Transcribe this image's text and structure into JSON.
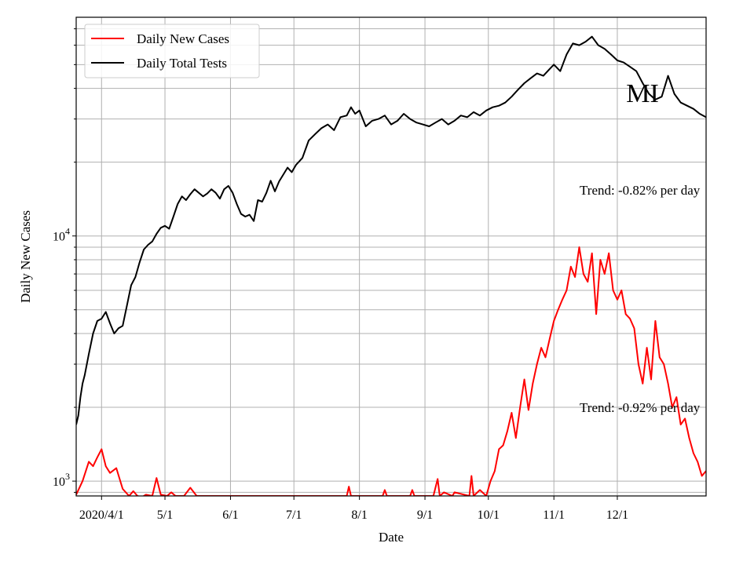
{
  "chart_data": {
    "type": "line",
    "title": "",
    "xlabel": "Date",
    "ylabel": "Daily New Cases",
    "yscale": "log",
    "ylim": [
      870,
      78000
    ],
    "xlim": [
      "2020-03-20",
      "2021-01-12"
    ],
    "grid": true,
    "legend_position": "top-left",
    "state_label": "MI",
    "x_ticks": [
      {
        "date": "2020-04-01",
        "label": "2020/4/1"
      },
      {
        "date": "2020-05-01",
        "label": "5/1"
      },
      {
        "date": "2020-06-01",
        "label": "6/1"
      },
      {
        "date": "2020-07-01",
        "label": "7/1"
      },
      {
        "date": "2020-08-01",
        "label": "8/1"
      },
      {
        "date": "2020-09-01",
        "label": "9/1"
      },
      {
        "date": "2020-10-01",
        "label": "10/1"
      },
      {
        "date": "2020-11-01",
        "label": "11/1"
      },
      {
        "date": "2020-12-01",
        "label": "12/1"
      }
    ],
    "y_major_ticks": [
      {
        "value": 1000,
        "base": "10",
        "exp": "3"
      },
      {
        "value": 10000,
        "base": "10",
        "exp": "4"
      }
    ],
    "annotations": [
      {
        "text": "Trend: -0.82% per day",
        "near_series": "Daily Total Tests"
      },
      {
        "text": "Trend: -0.92% per day",
        "near_series": "Daily New Cases"
      }
    ],
    "series": [
      {
        "name": "Daily New Cases",
        "color": "#ff0000",
        "x": [
          "2020-03-20",
          "2020-03-23",
          "2020-03-26",
          "2020-03-28",
          "2020-03-30",
          "2020-04-01",
          "2020-04-03",
          "2020-04-05",
          "2020-04-08",
          "2020-04-11",
          "2020-04-14",
          "2020-04-16",
          "2020-04-18",
          "2020-04-20",
          "2020-04-22",
          "2020-04-25",
          "2020-04-27",
          "2020-04-29",
          "2020-05-02",
          "2020-05-04",
          "2020-05-06",
          "2020-05-10",
          "2020-05-13",
          "2020-05-16",
          "2020-05-20",
          "2020-05-25",
          "2020-06-01",
          "2020-06-10",
          "2020-06-20",
          "2020-07-01",
          "2020-07-15",
          "2020-07-26",
          "2020-07-27",
          "2020-07-28",
          "2020-08-05",
          "2020-08-12",
          "2020-08-13",
          "2020-08-14",
          "2020-08-25",
          "2020-08-26",
          "2020-08-27",
          "2020-09-05",
          "2020-09-07",
          "2020-09-08",
          "2020-09-10",
          "2020-09-14",
          "2020-09-15",
          "2020-09-22",
          "2020-09-23",
          "2020-09-24",
          "2020-09-27",
          "2020-09-30",
          "2020-10-02",
          "2020-10-04",
          "2020-10-06",
          "2020-10-08",
          "2020-10-10",
          "2020-10-12",
          "2020-10-14",
          "2020-10-16",
          "2020-10-18",
          "2020-10-20",
          "2020-10-22",
          "2020-10-24",
          "2020-10-26",
          "2020-10-28",
          "2020-10-30",
          "2020-11-01",
          "2020-11-03",
          "2020-11-05",
          "2020-11-07",
          "2020-11-09",
          "2020-11-11",
          "2020-11-13",
          "2020-11-15",
          "2020-11-17",
          "2020-11-19",
          "2020-11-21",
          "2020-11-23",
          "2020-11-25",
          "2020-11-27",
          "2020-11-29",
          "2020-12-01",
          "2020-12-03",
          "2020-12-05",
          "2020-12-07",
          "2020-12-09",
          "2020-12-11",
          "2020-12-13",
          "2020-12-15",
          "2020-12-17",
          "2020-12-19",
          "2020-12-21",
          "2020-12-23",
          "2020-12-25",
          "2020-12-27",
          "2020-12-29",
          "2020-12-31",
          "2021-01-02",
          "2021-01-04",
          "2021-01-06",
          "2021-01-08",
          "2021-01-10",
          "2021-01-12"
        ],
        "values": [
          880,
          1000,
          1200,
          1150,
          1250,
          1350,
          1150,
          1080,
          1130,
          930,
          870,
          910,
          870,
          860,
          880,
          870,
          1030,
          880,
          870,
          900,
          870,
          870,
          940,
          870,
          870,
          870,
          870,
          870,
          870,
          870,
          870,
          870,
          950,
          870,
          870,
          870,
          920,
          870,
          870,
          920,
          870,
          870,
          1020,
          870,
          900,
          870,
          900,
          870,
          1050,
          870,
          920,
          870,
          1000,
          1100,
          1350,
          1400,
          1600,
          1900,
          1500,
          2000,
          2600,
          1950,
          2500,
          3000,
          3500,
          3200,
          3800,
          4500,
          5000,
          5500,
          6000,
          7500,
          6800,
          9000,
          7000,
          6500,
          8500,
          4800,
          8000,
          7000,
          8500,
          6000,
          5500,
          6000,
          4800,
          4600,
          4200,
          3000,
          2500,
          3500,
          2600,
          4500,
          3200,
          3000,
          2500,
          2000,
          2200,
          1700,
          1800,
          1500,
          1300,
          1200,
          1050,
          1100
        ]
      },
      {
        "name": "Daily Total Tests",
        "color": "#000000",
        "x": [
          "2020-03-20",
          "2020-03-21",
          "2020-03-22",
          "2020-03-23",
          "2020-03-24",
          "2020-03-26",
          "2020-03-28",
          "2020-03-30",
          "2020-04-01",
          "2020-04-03",
          "2020-04-05",
          "2020-04-07",
          "2020-04-09",
          "2020-04-11",
          "2020-04-13",
          "2020-04-15",
          "2020-04-17",
          "2020-04-19",
          "2020-04-21",
          "2020-04-23",
          "2020-04-25",
          "2020-04-27",
          "2020-04-29",
          "2020-05-01",
          "2020-05-03",
          "2020-05-05",
          "2020-05-07",
          "2020-05-09",
          "2020-05-11",
          "2020-05-13",
          "2020-05-15",
          "2020-05-17",
          "2020-05-19",
          "2020-05-21",
          "2020-05-23",
          "2020-05-25",
          "2020-05-27",
          "2020-05-29",
          "2020-05-31",
          "2020-06-02",
          "2020-06-04",
          "2020-06-06",
          "2020-06-08",
          "2020-06-10",
          "2020-06-12",
          "2020-06-14",
          "2020-06-16",
          "2020-06-18",
          "2020-06-20",
          "2020-06-22",
          "2020-06-24",
          "2020-06-26",
          "2020-06-28",
          "2020-06-30",
          "2020-07-02",
          "2020-07-05",
          "2020-07-08",
          "2020-07-11",
          "2020-07-14",
          "2020-07-17",
          "2020-07-20",
          "2020-07-23",
          "2020-07-26",
          "2020-07-28",
          "2020-07-30",
          "2020-08-01",
          "2020-08-04",
          "2020-08-07",
          "2020-08-10",
          "2020-08-13",
          "2020-08-16",
          "2020-08-19",
          "2020-08-22",
          "2020-08-25",
          "2020-08-28",
          "2020-08-31",
          "2020-09-03",
          "2020-09-06",
          "2020-09-09",
          "2020-09-12",
          "2020-09-15",
          "2020-09-18",
          "2020-09-21",
          "2020-09-24",
          "2020-09-27",
          "2020-09-30",
          "2020-10-03",
          "2020-10-06",
          "2020-10-09",
          "2020-10-12",
          "2020-10-15",
          "2020-10-18",
          "2020-10-21",
          "2020-10-24",
          "2020-10-27",
          "2020-10-30",
          "2020-11-01",
          "2020-11-04",
          "2020-11-07",
          "2020-11-10",
          "2020-11-13",
          "2020-11-16",
          "2020-11-19",
          "2020-11-22",
          "2020-11-25",
          "2020-11-28",
          "2020-12-01",
          "2020-12-04",
          "2020-12-07",
          "2020-12-10",
          "2020-12-13",
          "2020-12-16",
          "2020-12-19",
          "2020-12-22",
          "2020-12-25",
          "2020-12-28",
          "2020-12-31",
          "2021-01-03",
          "2021-01-06",
          "2021-01-09",
          "2021-01-12"
        ],
        "values": [
          1700,
          1850,
          2200,
          2500,
          2700,
          3300,
          4000,
          4500,
          4600,
          4900,
          4400,
          4000,
          4200,
          4300,
          5200,
          6300,
          6800,
          7800,
          8800,
          9200,
          9500,
          10200,
          10800,
          11000,
          10700,
          12000,
          13500,
          14500,
          14000,
          14800,
          15500,
          15000,
          14500,
          14900,
          15500,
          15000,
          14200,
          15500,
          16000,
          15000,
          13500,
          12300,
          12000,
          12200,
          11500,
          14000,
          13800,
          15000,
          16800,
          15200,
          16700,
          17800,
          19000,
          18200,
          19500,
          20800,
          24500,
          26000,
          27500,
          28500,
          27000,
          30500,
          31000,
          33500,
          31500,
          32500,
          28000,
          29500,
          30000,
          31000,
          28500,
          29500,
          31500,
          30000,
          29000,
          28500,
          28000,
          29000,
          30000,
          28500,
          29500,
          31000,
          30500,
          32000,
          31000,
          32500,
          33500,
          34000,
          35000,
          37000,
          39500,
          42000,
          44000,
          46000,
          45000,
          48000,
          50000,
          47000,
          55000,
          61000,
          60000,
          62000,
          65000,
          60000,
          58000,
          55000,
          52000,
          51000,
          49000,
          47000,
          42000,
          38000,
          36000,
          37000,
          45000,
          38000,
          35000,
          34000,
          33000,
          31500,
          30500
        ]
      }
    ]
  }
}
